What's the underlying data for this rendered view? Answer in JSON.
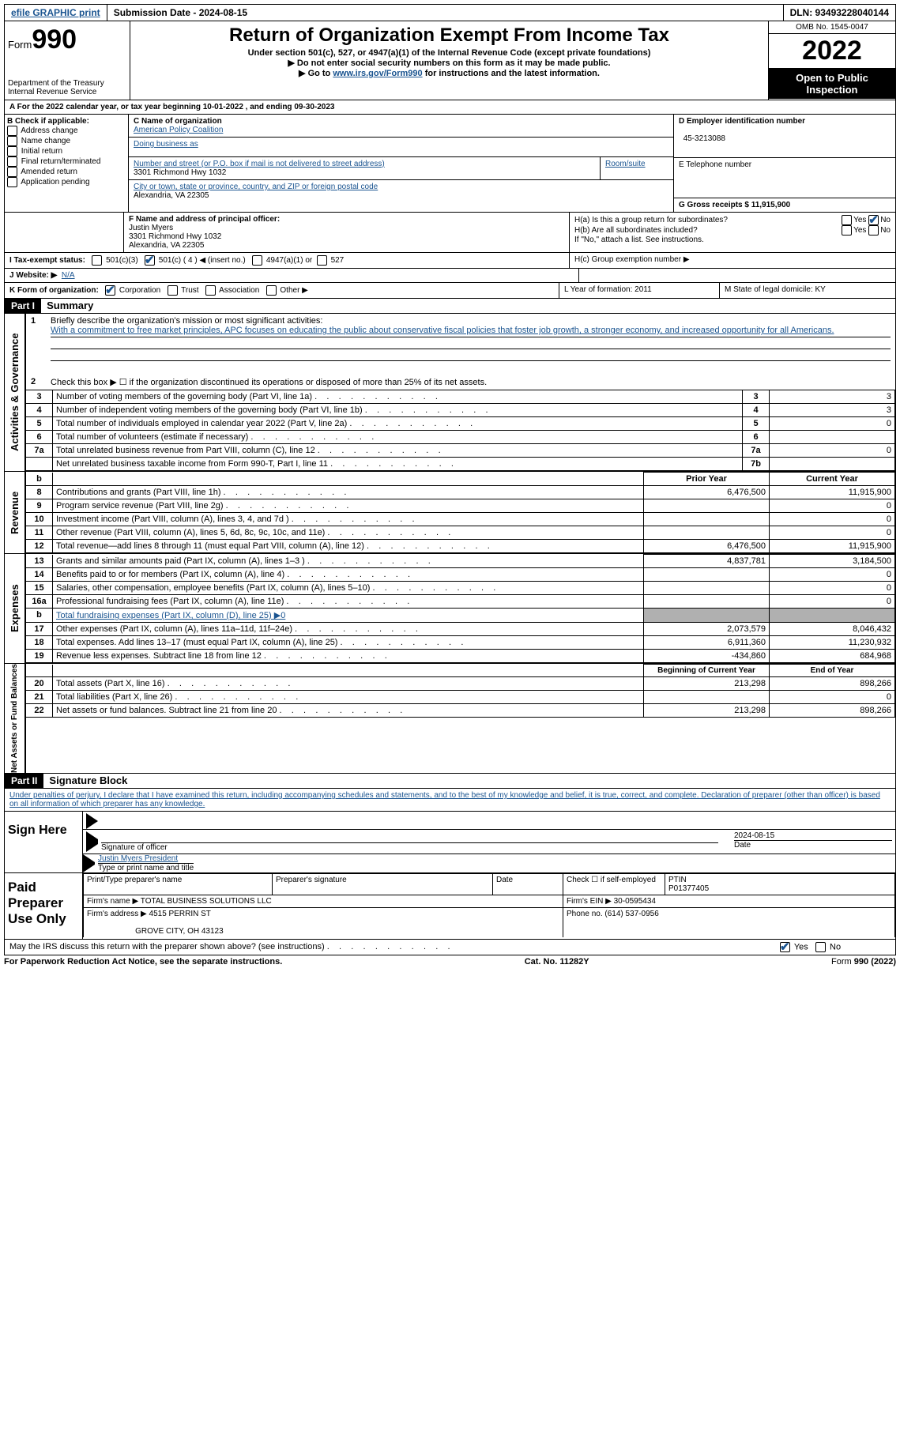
{
  "topbar": {
    "efile_label": "efile GRAPHIC print",
    "submission_label": "Submission Date - 2024-08-15",
    "dln_label": "DLN: 93493228040144"
  },
  "header": {
    "form_word": "Form",
    "form_no": "990",
    "dept": "Department of the Treasury Internal Revenue Service",
    "title": "Return of Organization Exempt From Income Tax",
    "subtitle": "Under section 501(c), 527, or 4947(a)(1) of the Internal Revenue Code (except private foundations)",
    "note1": "▶ Do not enter social security numbers on this form as it may be made public.",
    "note2_pre": "▶ Go to ",
    "note2_link": "www.irs.gov/Form990",
    "note2_post": " for instructions and the latest information.",
    "omb": "OMB No. 1545-0047",
    "year": "2022",
    "open": "Open to Public Inspection"
  },
  "a_line": "A For the 2022 calendar year, or tax year beginning 10-01-2022    , and ending 09-30-2023",
  "b": {
    "label": "B Check if applicable:",
    "items": [
      "Address change",
      "Name change",
      "Initial return",
      "Final return/terminated",
      "Amended return",
      "Application pending"
    ]
  },
  "c": {
    "name_label": "C Name of organization",
    "name": "American Policy Coalition",
    "dba_label": "Doing business as",
    "addr_label": "Number and street (or P.O. box if mail is not delivered to street address)",
    "room_label": "Room/suite",
    "addr": "3301 Richmond Hwy 1032",
    "city_label": "City or town, state or province, country, and ZIP or foreign postal code",
    "city": "Alexandria, VA  22305"
  },
  "d": {
    "ein_label": "D Employer identification number",
    "ein": "45-3213088",
    "tel_label": "E Telephone number",
    "gross_label": "G Gross receipts $ 11,915,900"
  },
  "f": {
    "label": "F  Name and address of principal officer:",
    "name": "Justin Myers",
    "addr1": "3301 Richmond Hwy 1032",
    "addr2": "Alexandria, VA  22305"
  },
  "h": {
    "a": "H(a)  Is this a group return for subordinates?",
    "b": "H(b)  Are all subordinates included?",
    "b_note": "If \"No,\" attach a list. See instructions.",
    "c": "H(c)  Group exemption number ▶",
    "yes": "Yes",
    "no": "No"
  },
  "i": {
    "label": "I  Tax-exempt status:",
    "opts": [
      "501(c)(3)",
      "501(c) ( 4 ) ◀ (insert no.)",
      "4947(a)(1) or",
      "527"
    ]
  },
  "j": {
    "label": "J  Website: ▶",
    "val": "N/A"
  },
  "k": {
    "label": "K Form of organization:",
    "opts": [
      "Corporation",
      "Trust",
      "Association",
      "Other ▶"
    ],
    "l": "L Year of formation: 2011",
    "m": "M State of legal domicile: KY"
  },
  "part1": {
    "hdr": "Part I",
    "title": "Summary",
    "vtab1": "Activities & Governance",
    "vtab2": "Revenue",
    "vtab3": "Expenses",
    "vtab4": "Net Assets or Fund Balances",
    "line1_label": "Briefly describe the organization's mission or most significant activities:",
    "line1_text": "With a commitment to free market principles, APC focuses on educating the public about conservative fiscal policies that foster job growth, a stronger economy, and increased opportunity for all Americans.",
    "line2": "Check this box ▶ ☐  if the organization discontinued its operations or disposed of more than 25% of its net assets.",
    "rows_gov": [
      {
        "n": "3",
        "label": "Number of voting members of the governing body (Part VI, line 1a)",
        "nb": "3",
        "cur": "3"
      },
      {
        "n": "4",
        "label": "Number of independent voting members of the governing body (Part VI, line 1b)",
        "nb": "4",
        "cur": "3"
      },
      {
        "n": "5",
        "label": "Total number of individuals employed in calendar year 2022 (Part V, line 2a)",
        "nb": "5",
        "cur": "0"
      },
      {
        "n": "6",
        "label": "Total number of volunteers (estimate if necessary)",
        "nb": "6",
        "cur": ""
      },
      {
        "n": "7a",
        "label": "Total unrelated business revenue from Part VIII, column (C), line 12",
        "nb": "7a",
        "cur": "0"
      },
      {
        "n": "",
        "label": "Net unrelated business taxable income from Form 990-T, Part I, line 11",
        "nb": "7b",
        "cur": ""
      }
    ],
    "col_prior": "Prior Year",
    "col_current": "Current Year",
    "rows_rev": [
      {
        "n": "8",
        "label": "Contributions and grants (Part VIII, line 1h)",
        "p": "6,476,500",
        "c": "11,915,900"
      },
      {
        "n": "9",
        "label": "Program service revenue (Part VIII, line 2g)",
        "p": "",
        "c": "0"
      },
      {
        "n": "10",
        "label": "Investment income (Part VIII, column (A), lines 3, 4, and 7d )",
        "p": "",
        "c": "0"
      },
      {
        "n": "11",
        "label": "Other revenue (Part VIII, column (A), lines 5, 6d, 8c, 9c, 10c, and 11e)",
        "p": "",
        "c": "0"
      },
      {
        "n": "12",
        "label": "Total revenue—add lines 8 through 11 (must equal Part VIII, column (A), line 12)",
        "p": "6,476,500",
        "c": "11,915,900"
      }
    ],
    "rows_exp": [
      {
        "n": "13",
        "label": "Grants and similar amounts paid (Part IX, column (A), lines 1–3 )",
        "p": "4,837,781",
        "c": "3,184,500"
      },
      {
        "n": "14",
        "label": "Benefits paid to or for members (Part IX, column (A), line 4)",
        "p": "",
        "c": "0"
      },
      {
        "n": "15",
        "label": "Salaries, other compensation, employee benefits (Part IX, column (A), lines 5–10)",
        "p": "",
        "c": "0"
      },
      {
        "n": "16a",
        "label": "Professional fundraising fees (Part IX, column (A), line 11e)",
        "p": "",
        "c": "0"
      },
      {
        "n": "b",
        "label": "Total fundraising expenses (Part IX, column (D), line 25) ▶0",
        "p": "grey",
        "c": "grey"
      },
      {
        "n": "17",
        "label": "Other expenses (Part IX, column (A), lines 11a–11d, 11f–24e)",
        "p": "2,073,579",
        "c": "8,046,432"
      },
      {
        "n": "18",
        "label": "Total expenses. Add lines 13–17 (must equal Part IX, column (A), line 25)",
        "p": "6,911,360",
        "c": "11,230,932"
      },
      {
        "n": "19",
        "label": "Revenue less expenses. Subtract line 18 from line 12",
        "p": "-434,860",
        "c": "684,968"
      }
    ],
    "col_begin": "Beginning of Current Year",
    "col_end": "End of Year",
    "rows_net": [
      {
        "n": "20",
        "label": "Total assets (Part X, line 16)",
        "p": "213,298",
        "c": "898,266"
      },
      {
        "n": "21",
        "label": "Total liabilities (Part X, line 26)",
        "p": "",
        "c": "0"
      },
      {
        "n": "22",
        "label": "Net assets or fund balances. Subtract line 21 from line 20",
        "p": "213,298",
        "c": "898,266"
      }
    ]
  },
  "part2": {
    "hdr": "Part II",
    "title": "Signature Block",
    "decl": "Under penalties of perjury, I declare that I have examined this return, including accompanying schedules and statements, and to the best of my knowledge and belief, it is true, correct, and complete. Declaration of preparer (other than officer) is based on all information of which preparer has any knowledge.",
    "sign_here": "Sign Here",
    "sig_officer": "Signature of officer",
    "sig_date": "2024-08-15",
    "date_label": "Date",
    "officer_name": "Justin Myers  President",
    "type_name": "Type or print name and title",
    "paid": "Paid Preparer Use Only",
    "prep_name_label": "Print/Type preparer's name",
    "prep_sig_label": "Preparer's signature",
    "check_self": "Check ☐ if self-employed",
    "ptin_label": "PTIN",
    "ptin": "P01377405",
    "firm_name_label": "Firm's name    ▶",
    "firm_name": "TOTAL BUSINESS SOLUTIONS LLC",
    "firm_ein_label": "Firm's EIN ▶",
    "firm_ein": "30-0595434",
    "firm_addr_label": "Firm's address ▶",
    "firm_addr": "4515 PERRIN ST",
    "firm_city": "GROVE CITY, OH  43123",
    "phone_label": "Phone no. (614) 537-0956",
    "discuss": "May the IRS discuss this return with the preparer shown above? (see instructions)"
  },
  "footer": {
    "left": "For Paperwork Reduction Act Notice, see the separate instructions.",
    "mid": "Cat. No. 11282Y",
    "right": "Form 990 (2022)"
  }
}
